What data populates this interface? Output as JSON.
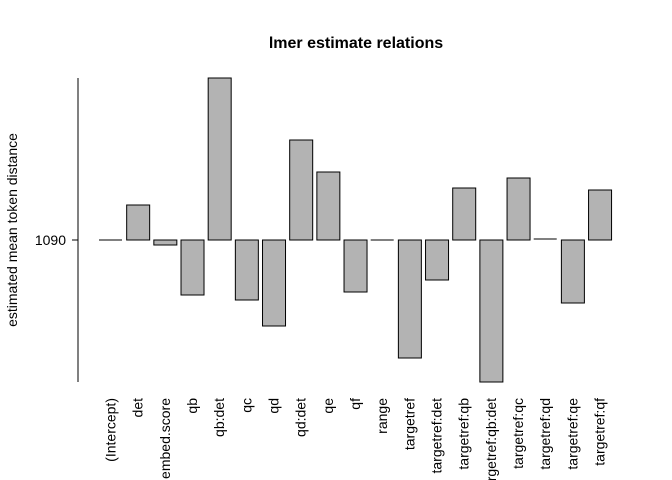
{
  "chart_data": {
    "type": "bar",
    "title": "lmer estimate relations",
    "xlabel": "",
    "ylabel": "estimated mean token distance",
    "baseline": 1090,
    "yticks": [
      1090
    ],
    "ylim": [
      948,
      1252
    ],
    "grid": false,
    "bar_color": "#b3b3b3",
    "categories": [
      "(Intercept)",
      "det",
      "embed.score",
      "qb",
      "qb:det",
      "qc",
      "qd",
      "qd:det",
      "qe",
      "qf",
      "range",
      "targetref",
      "targetref:det",
      "targetref:qb",
      "targetref:qb:det",
      "targetref:qc",
      "targetref:qd",
      "targetref:qe",
      "targetref:qf"
    ],
    "values": [
      1090,
      1125,
      1085,
      1035,
      1252,
      1030,
      1004,
      1190,
      1158,
      1038,
      1090,
      972,
      1050,
      1142,
      948,
      1152,
      1091,
      1027,
      1140
    ]
  }
}
